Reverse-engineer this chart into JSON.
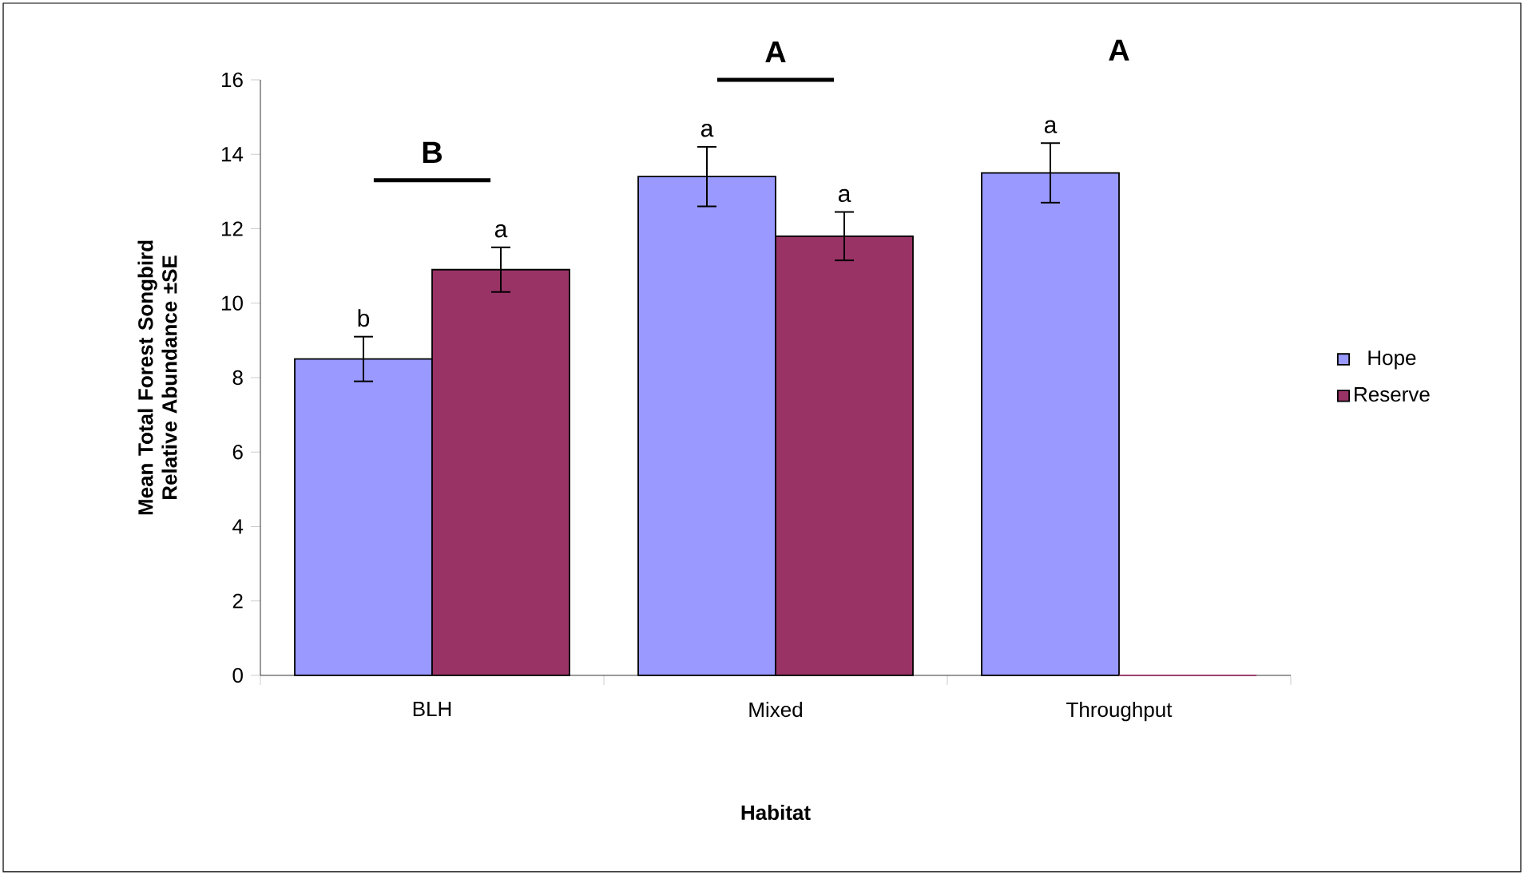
{
  "chart_data": {
    "type": "bar",
    "xlabel": "Habitat",
    "ylabel": "Mean Total Forest Songbird Relative Abundance ±SE",
    "categories": [
      "BLH",
      "Mixed",
      "Throughput"
    ],
    "series": [
      {
        "name": "Hope",
        "color": "#9999ff",
        "values": [
          8.5,
          13.4,
          13.5
        ],
        "errors": [
          0.6,
          0.8,
          0.8
        ],
        "value_labels": [
          "b",
          "a",
          "a"
        ]
      },
      {
        "name": "Reserve",
        "color": "#993366",
        "values": [
          10.9,
          11.8,
          0
        ],
        "errors": [
          0.6,
          0.65,
          null
        ],
        "value_labels": [
          "a",
          "a",
          null
        ]
      }
    ],
    "ylim": [
      0,
      16
    ],
    "yticks": [
      0,
      2,
      4,
      6,
      8,
      10,
      12,
      14,
      16
    ],
    "annotations": [
      "B",
      "A",
      "A"
    ],
    "legend": "right",
    "grid": false
  }
}
